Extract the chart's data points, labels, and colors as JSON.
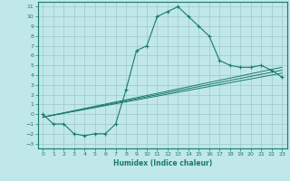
{
  "xlabel": "Humidex (Indice chaleur)",
  "xlim": [
    -0.5,
    23.5
  ],
  "ylim": [
    -3.5,
    11.5
  ],
  "xticks": [
    0,
    1,
    2,
    3,
    4,
    5,
    6,
    7,
    8,
    9,
    10,
    11,
    12,
    13,
    14,
    15,
    16,
    17,
    18,
    19,
    20,
    21,
    22,
    23
  ],
  "yticks": [
    -3,
    -2,
    -1,
    0,
    1,
    2,
    3,
    4,
    5,
    6,
    7,
    8,
    9,
    10,
    11
  ],
  "line_color": "#1a7a6a",
  "bg_color": "#c0e8e8",
  "grid_color": "#a0c8c8",
  "curve1_x": [
    0,
    1,
    2,
    3,
    4,
    5,
    6,
    7,
    8,
    9,
    10,
    11,
    12,
    13,
    14,
    15,
    16,
    17,
    18,
    19,
    20,
    21,
    22,
    23
  ],
  "curve1_y": [
    0,
    -1,
    -1,
    -2,
    -2.2,
    -2,
    -2,
    -1,
    2.5,
    6.5,
    7,
    10,
    10.5,
    11,
    10,
    9,
    8,
    5.5,
    5,
    4.8,
    4.8,
    5,
    4.5,
    3.8
  ],
  "line2_x": [
    0,
    23
  ],
  "line2_y": [
    -0.3,
    4.8
  ],
  "line3_x": [
    0,
    23
  ],
  "line3_y": [
    -0.3,
    4.2
  ],
  "line4_x": [
    0,
    23
  ],
  "line4_y": [
    -0.3,
    4.5
  ]
}
